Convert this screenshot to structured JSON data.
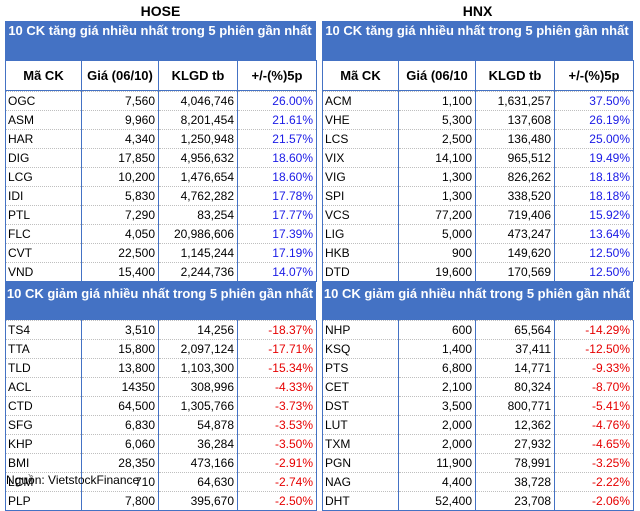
{
  "hose": {
    "title": "HOSE",
    "gain_header": "10 CK tăng giá nhiều nhất trong 5 phiên gần nhất",
    "loss_header": "10 CK giảm giá nhiều nhất trong 5 phiên gần nhất",
    "columns": [
      "Mã CK",
      "Giá (06/10)",
      "KLGD tb",
      "+/-(%)5p"
    ],
    "gainers": [
      [
        "OGC",
        "7,560",
        "4,046,746",
        "26.00%"
      ],
      [
        "ASM",
        "9,960",
        "8,201,454",
        "21.61%"
      ],
      [
        "HAR",
        "4,340",
        "1,250,948",
        "21.57%"
      ],
      [
        "DIG",
        "17,850",
        "4,956,632",
        "18.60%"
      ],
      [
        "LCG",
        "10,200",
        "1,476,654",
        "18.60%"
      ],
      [
        "IDI",
        "5,830",
        "4,762,282",
        "17.78%"
      ],
      [
        "PTL",
        "7,290",
        "83,254",
        "17.77%"
      ],
      [
        "FLC",
        "4,050",
        "20,986,606",
        "17.39%"
      ],
      [
        "CVT",
        "22,500",
        "1,145,244",
        "17.19%"
      ],
      [
        "VND",
        "15,400",
        "2,244,736",
        "14.07%"
      ]
    ],
    "losers": [
      [
        "TS4",
        "3,510",
        "14,256",
        "-18.37%"
      ],
      [
        "TTA",
        "15,800",
        "2,097,124",
        "-17.71%"
      ],
      [
        "TLD",
        "13,800",
        "1,103,300",
        "-15.34%"
      ],
      [
        "ACL",
        "14350",
        "308,996",
        "-4.33%"
      ],
      [
        "CTD",
        "64,500",
        "1,305,766",
        "-3.73%"
      ],
      [
        "SFG",
        "6,830",
        "54,878",
        "-3.53%"
      ],
      [
        "KHP",
        "6,060",
        "36,284",
        "-3.50%"
      ],
      [
        "BMI",
        "28,350",
        "473,166",
        "-2.91%"
      ],
      [
        "LCM",
        "710",
        "64,630",
        "-2.74%"
      ],
      [
        "PLP",
        "7,800",
        "395,670",
        "-2.50%"
      ]
    ]
  },
  "hnx": {
    "title": "HNX",
    "gain_header": "10 CK tăng giá nhiều nhất trong 5 phiên gần nhất",
    "loss_header": "10 CK giảm giá nhiều nhất trong 5 phiên gần nhất",
    "columns": [
      "Mã CK",
      "Giá (06/10",
      "KLGD tb",
      "+/-(%)5p"
    ],
    "gainers": [
      [
        "ACM",
        "1,100",
        "1,631,257",
        "37.50%"
      ],
      [
        "VHE",
        "5,300",
        "137,608",
        "26.19%"
      ],
      [
        "LCS",
        "2,500",
        "136,480",
        "25.00%"
      ],
      [
        "VIX",
        "14,100",
        "965,512",
        "19.49%"
      ],
      [
        "VIG",
        "1,300",
        "826,262",
        "18.18%"
      ],
      [
        "SPI",
        "1,300",
        "338,520",
        "18.18%"
      ],
      [
        "VCS",
        "77,200",
        "719,406",
        "15.92%"
      ],
      [
        "LIG",
        "5,000",
        "473,247",
        "13.64%"
      ],
      [
        "HKB",
        "900",
        "149,620",
        "12.50%"
      ],
      [
        "DTD",
        "19,600",
        "170,569",
        "12.50%"
      ]
    ],
    "losers": [
      [
        "NHP",
        "600",
        "65,564",
        "-14.29%"
      ],
      [
        "KSQ",
        "1,400",
        "37,411",
        "-12.50%"
      ],
      [
        "PTS",
        "6,800",
        "14,771",
        "-9.33%"
      ],
      [
        "CET",
        "2,100",
        "80,324",
        "-8.70%"
      ],
      [
        "DST",
        "3,500",
        "800,771",
        "-5.41%"
      ],
      [
        "LUT",
        "2,000",
        "12,362",
        "-4.76%"
      ],
      [
        "TXM",
        "2,000",
        "27,932",
        "-4.65%"
      ],
      [
        "PGN",
        "11,900",
        "78,991",
        "-3.25%"
      ],
      [
        "NAG",
        "4,400",
        "38,728",
        "-2.22%"
      ],
      [
        "DHT",
        "52,400",
        "23,708",
        "-2.06%"
      ]
    ]
  },
  "source": "Nguồn: VietstockFinance",
  "colors": {
    "header_bg": "#4472c4",
    "header_text": "#ffffff",
    "gain": "#1a1ae6",
    "loss": "#e60000"
  }
}
